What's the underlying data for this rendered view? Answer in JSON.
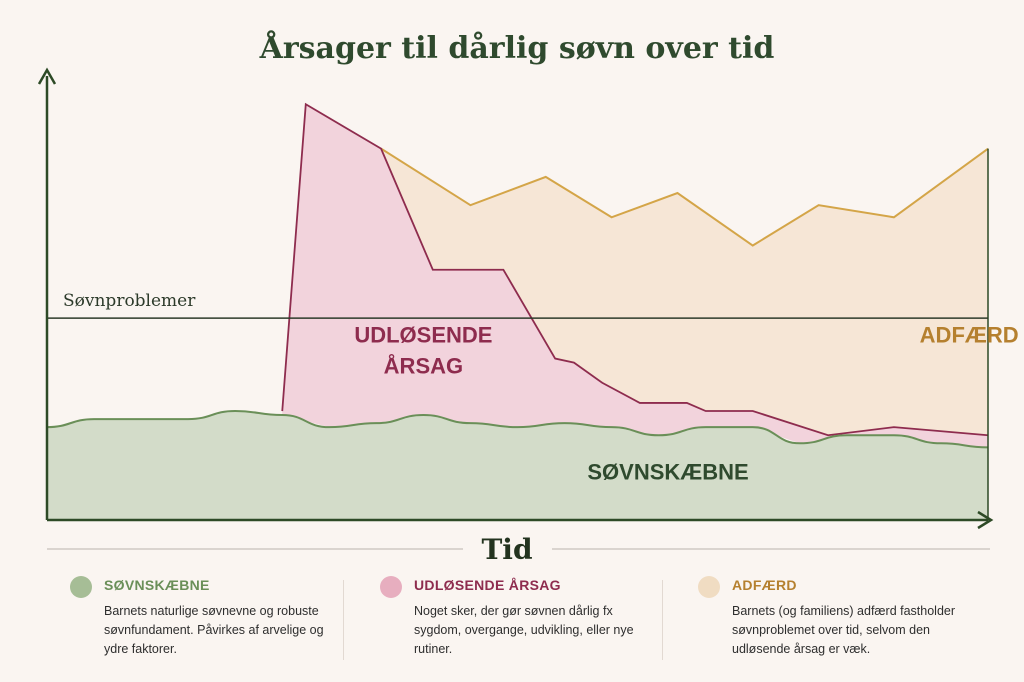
{
  "chart_data": {
    "type": "area",
    "title": "Årsager til dårlig søvn over tid",
    "xlabel": "Tid",
    "ylabel": "",
    "x": [
      0,
      5,
      10,
      15,
      20,
      25,
      30,
      35,
      40,
      45,
      50,
      55,
      60,
      65,
      70,
      75,
      80,
      85,
      90,
      95,
      100
    ],
    "threshold": {
      "label": "Søvnproblemer",
      "value": 5.0
    },
    "series": [
      {
        "name": "SØVNSKÆBNE",
        "color": "#d3dcc9",
        "line_color": "#6a8f58",
        "values": [
          2.3,
          2.5,
          2.5,
          2.5,
          2.7,
          2.6,
          2.3,
          2.4,
          2.6,
          2.4,
          2.3,
          2.4,
          2.3,
          2.1,
          2.3,
          2.3,
          1.9,
          2.1,
          2.1,
          1.9,
          1.8
        ]
      },
      {
        "name": "UDLØSENDE ÅRSAG",
        "color": "#f2d3dc",
        "line_color": "#8e2c4e",
        "points": [
          [
            25,
            2.7
          ],
          [
            27.5,
            10.3
          ],
          [
            35.5,
            9.2
          ],
          [
            41,
            6.2
          ],
          [
            48.5,
            6.2
          ],
          [
            54,
            4.0
          ],
          [
            56,
            3.9
          ],
          [
            59,
            3.4
          ],
          [
            63,
            2.9
          ],
          [
            68,
            2.9
          ],
          [
            70,
            2.7
          ],
          [
            75,
            2.7
          ],
          [
            83,
            2.1
          ],
          [
            90,
            2.3
          ],
          [
            100,
            2.1
          ]
        ]
      },
      {
        "name": "ADFÆRD",
        "color": "#f6e6d6",
        "line_color": "#d4a548",
        "points": [
          [
            35.5,
            9.2
          ],
          [
            45,
            7.8
          ],
          [
            53,
            8.5
          ],
          [
            60,
            7.5
          ],
          [
            67,
            8.1
          ],
          [
            75,
            6.8
          ],
          [
            82,
            7.8
          ],
          [
            90,
            7.5
          ],
          [
            100,
            9.2
          ]
        ]
      }
    ],
    "ylim": [
      0,
      11
    ],
    "xlim": [
      0,
      100
    ],
    "region_labels": [
      {
        "lines": [
          "UDLØSENDE",
          "ÅRSAG"
        ],
        "color": "#8e2c4e",
        "x": 23,
        "y": 4.4
      },
      {
        "lines": [
          "ADFÆRD"
        ],
        "color": "#b5802f",
        "x": 81,
        "y": 4.4
      },
      {
        "lines": [
          "SØVNSKÆBNE"
        ],
        "color": "#2f4a2e",
        "x": 49,
        "y": 1.0
      }
    ],
    "grid": false,
    "legend": "bottom"
  },
  "legend_items": [
    {
      "title": "SØVNSKÆBNE",
      "title_color": "#6a8f58",
      "dot_color": "#a6bd96",
      "desc": "Barnets naturlige søvnevne og robuste søvnfundament. Påvirkes af arvelige og ydre faktorer."
    },
    {
      "title": "UDLØSENDE ÅRSAG",
      "title_color": "#8e2c4e",
      "dot_color": "#e7aebf",
      "desc": "Noget sker, der gør søvnen dårlig fx sygdom, overgange, udvikling, eller nye rutiner."
    },
    {
      "title": "ADFÆRD",
      "title_color": "#b5802f",
      "dot_color": "#f0dcc2",
      "desc": "Barnets (og familiens) adfærd fastholder søvnproblemet over tid, selvom den udløsende årsag er væk."
    }
  ]
}
